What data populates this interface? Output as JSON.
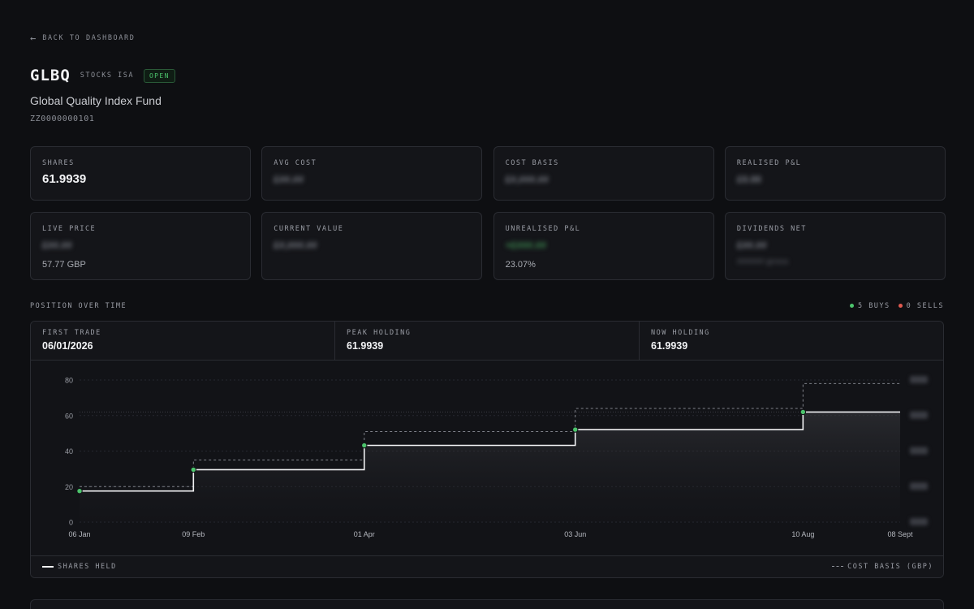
{
  "nav": {
    "back_label": "BACK TO DASHBOARD"
  },
  "header": {
    "ticker": "GLBQ",
    "account": "STOCKS ISA",
    "status": "OPEN",
    "fund_name": "Global Quality Index Fund",
    "isin": "ZZ0000000101"
  },
  "metrics": {
    "shares": {
      "label": "SHARES",
      "value": "61.9939"
    },
    "avg_cost": {
      "label": "AVG COST",
      "value": "£##.##"
    },
    "cost_basis": {
      "label": "COST BASIS",
      "value": "£#,###.##"
    },
    "realised": {
      "label": "REALISED P&L",
      "value": "£0.00"
    },
    "live_price": {
      "label": "LIVE PRICE",
      "value": "£##.##",
      "sub": "57.77 GBP"
    },
    "current_value": {
      "label": "CURRENT VALUE",
      "value": "£#,###.##"
    },
    "unrealised": {
      "label": "UNREALISED P&L",
      "value": "+£###.##",
      "sub": "23.07%"
    },
    "dividends": {
      "label": "DIVIDENDS NET",
      "value": "£##.##",
      "sub": "###### gross"
    }
  },
  "position": {
    "title": "POSITION OVER TIME",
    "buys_label": "5 BUYS",
    "sells_label": "0 SELLS",
    "first_trade_label": "FIRST TRADE",
    "first_trade": "06/01/2026",
    "peak_label": "PEAK HOLDING",
    "peak": "61.9939",
    "now_label": "NOW HOLDING",
    "now": "61.9939",
    "legend_shares": "SHARES HELD",
    "legend_cost": "COST BASIS (GBP)",
    "colors": {
      "buy": "#4cc46c",
      "sell": "#e05a4f",
      "line": "#f1f2f4"
    }
  },
  "chart_data": {
    "type": "line",
    "step": true,
    "x": [
      "06 Jan",
      "09 Feb",
      "01 Apr",
      "03 Jun",
      "10 Aug",
      "08 Sept"
    ],
    "x_days": [
      0,
      34,
      85,
      148,
      216,
      245
    ],
    "series": [
      {
        "name": "SHARES HELD",
        "values": [
          17.5,
          29.5,
          43.2,
          52.1,
          61.9939,
          61.9939
        ]
      },
      {
        "name": "COST BASIS (GBP)",
        "values": [
          20,
          35,
          51,
          64,
          78,
          78
        ]
      }
    ],
    "buys_at": [
      0,
      1,
      2,
      3,
      4
    ],
    "yticks": [
      0,
      20,
      40,
      60,
      80
    ],
    "ylim": [
      0,
      80
    ],
    "peak_reference": 61.9939,
    "grid": true
  }
}
